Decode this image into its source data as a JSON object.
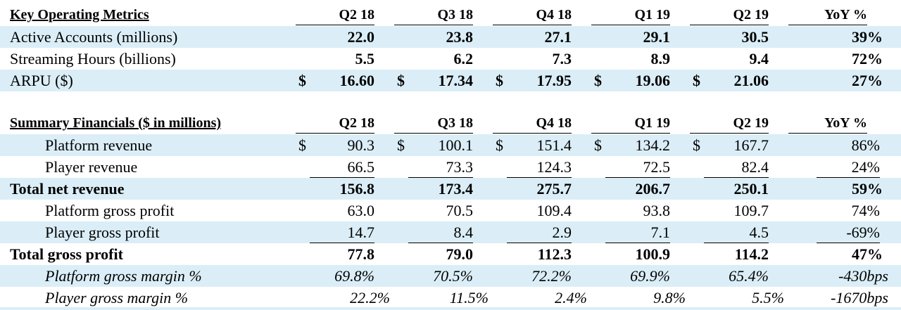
{
  "operating": {
    "title": "Key Operating Metrics",
    "columns": [
      "Q2 18",
      "Q3 18",
      "Q4 18",
      "Q1 19",
      "Q2 19",
      "YoY %"
    ],
    "rows": [
      {
        "label": "Active Accounts (millions)",
        "values": [
          "22.0",
          "23.8",
          "27.1",
          "29.1",
          "30.5"
        ],
        "yoy": "39%"
      },
      {
        "label": "Streaming Hours (billions)",
        "values": [
          "5.5",
          "6.2",
          "7.3",
          "8.9",
          "9.4"
        ],
        "yoy": "72%"
      },
      {
        "label": "ARPU ($)",
        "currency": "$",
        "values": [
          "16.60",
          "17.34",
          "17.95",
          "19.06",
          "21.06"
        ],
        "yoy": "27%"
      }
    ]
  },
  "financials": {
    "title": "Summary Financials ($ in millions)",
    "columns": [
      "Q2 18",
      "Q3 18",
      "Q4 18",
      "Q1 19",
      "Q2 19",
      "YoY %"
    ],
    "rows": [
      {
        "label": "Platform revenue",
        "currency": "$",
        "values": [
          "90.3",
          "100.1",
          "151.4",
          "134.2",
          "167.7"
        ],
        "yoy": "86%"
      },
      {
        "label": "Player revenue",
        "values": [
          "66.5",
          "73.3",
          "124.3",
          "72.5",
          "82.4"
        ],
        "yoy": "24%"
      },
      {
        "label": "Total net revenue",
        "values": [
          "156.8",
          "173.4",
          "275.7",
          "206.7",
          "250.1"
        ],
        "yoy": "59%"
      },
      {
        "label": "Platform gross profit",
        "values": [
          "63.0",
          "70.5",
          "109.4",
          "93.8",
          "109.7"
        ],
        "yoy": "74%"
      },
      {
        "label": "Player gross profit",
        "values": [
          "14.7",
          "8.4",
          "2.9",
          "7.1",
          "4.5"
        ],
        "yoy": "-69%"
      },
      {
        "label": "Total gross profit",
        "values": [
          "77.8",
          "79.0",
          "112.3",
          "100.9",
          "114.2"
        ],
        "yoy": "47%"
      },
      {
        "label": "Platform gross margin %",
        "values": [
          "69.8%",
          "70.5%",
          "72.2%",
          "69.9%",
          "65.4%"
        ],
        "yoy": "-430bps"
      },
      {
        "label": "Player gross margin %",
        "values": [
          "22.2%",
          "11.5%",
          "2.4%",
          "9.8%",
          "5.5%"
        ],
        "yoy": "-1670bps"
      }
    ]
  }
}
